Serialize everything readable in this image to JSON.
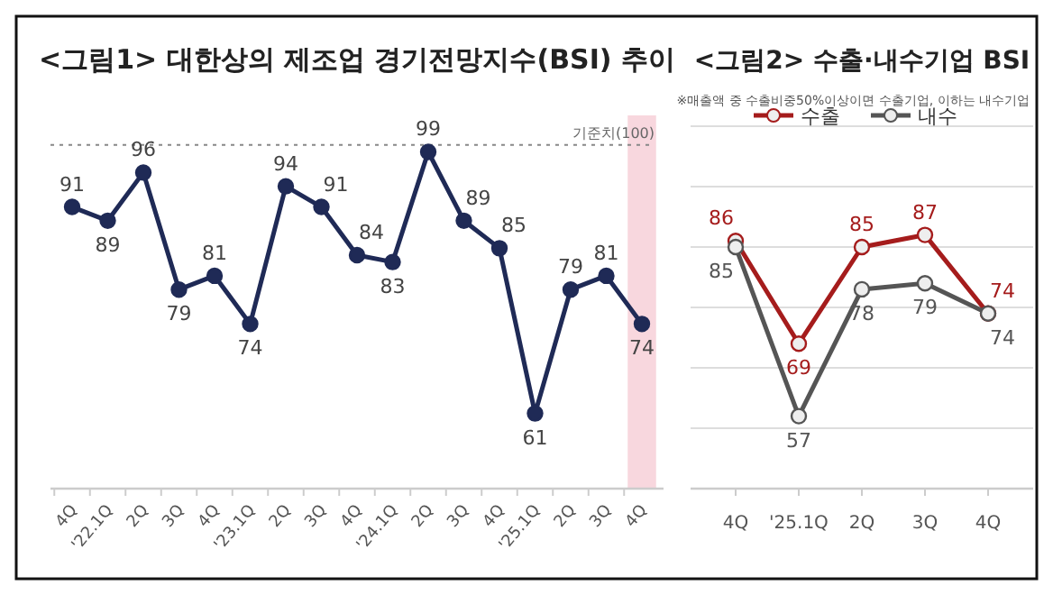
{
  "chart_data": [
    {
      "type": "line",
      "title": "<그림1> 대한상의 제조업 경기전망지수(BSI) 추이",
      "categories": [
        "4Q",
        "'22.1Q",
        "2Q",
        "3Q",
        "4Q",
        "'23.1Q",
        "2Q",
        "3Q",
        "4Q",
        "'24.1Q",
        "2Q",
        "3Q",
        "4Q",
        "'25.1Q",
        "2Q",
        "3Q",
        "4Q"
      ],
      "series": [
        {
          "color": "#1f2a56",
          "values": [
            91,
            89,
            96,
            79,
            81,
            74,
            94,
            91,
            84,
            83,
            99,
            89,
            85,
            61,
            79,
            81,
            74
          ]
        }
      ],
      "tick_labels": "x",
      "data_labels": true,
      "marker": "circle",
      "line_style": "solid",
      "grid": false,
      "legend": false,
      "ref_lines": [
        {
          "axis": "y",
          "value": 100,
          "label": "기준치(100)",
          "color": "#888888",
          "line_style": "dotted"
        }
      ]
    },
    {
      "type": "line",
      "title": "<그림2> 수출·내수기업 BSI",
      "subtitle": "※매출액 중 수출비중50%이상이면 수출기업, 이하는 내수기업",
      "categories": [
        "4Q",
        "'25.1Q",
        "2Q",
        "3Q",
        "4Q"
      ],
      "series": [
        {
          "name": "수출",
          "color": "#a51c1c",
          "values": [
            86,
            69,
            85,
            87,
            74
          ]
        },
        {
          "name": "내수",
          "color": "#555555",
          "values": [
            85,
            57,
            78,
            79,
            74
          ]
        }
      ],
      "ylim": [
        45,
        105
      ],
      "yticks": [
        {
          "value": 55,
          "label": null
        },
        {
          "value": 65,
          "label": null
        },
        {
          "value": 75,
          "label": null
        },
        {
          "value": 85,
          "label": null
        },
        {
          "value": 95,
          "label": null
        },
        {
          "value": 105,
          "label": null
        }
      ],
      "tick_labels": "x",
      "grid": "y",
      "data_labels": true,
      "marker": "circle",
      "line_style": "solid",
      "legend": "top"
    }
  ]
}
